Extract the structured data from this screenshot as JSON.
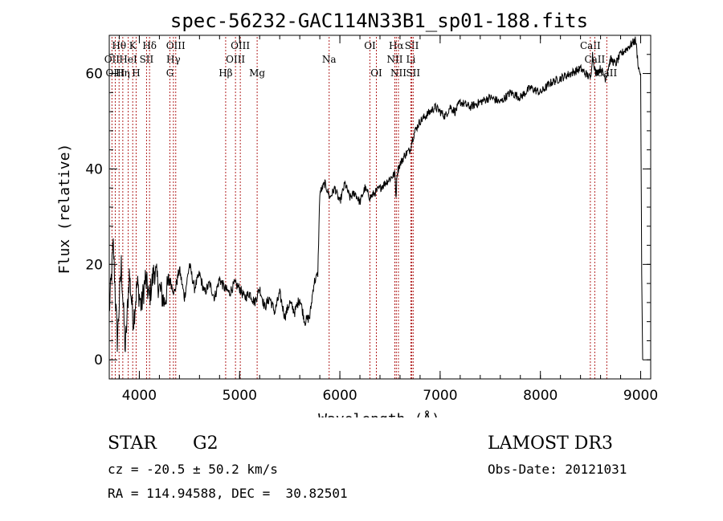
{
  "chart_data": {
    "type": "line",
    "title": "spec-56232-GAC114N33B1_sp01-188.fits",
    "xlabel": "Wavelength (Å)",
    "ylabel": "Flux (relative)",
    "xlim": [
      3700,
      9100
    ],
    "ylim": [
      -4,
      68
    ],
    "xticks": [
      4000,
      5000,
      6000,
      7000,
      8000,
      9000
    ],
    "yticks": [
      0,
      20,
      40,
      60
    ],
    "grid": false,
    "series": [
      {
        "name": "flux",
        "x": [
          3700,
          3740,
          3780,
          3820,
          3860,
          3900,
          3940,
          3980,
          4020,
          4060,
          4100,
          4150,
          4200,
          4250,
          4300,
          4350,
          4400,
          4450,
          4500,
          4550,
          4600,
          4650,
          4700,
          4750,
          4800,
          4850,
          4900,
          4950,
          5000,
          5050,
          5100,
          5150,
          5200,
          5250,
          5300,
          5350,
          5400,
          5450,
          5500,
          5550,
          5600,
          5650,
          5700,
          5740,
          5760,
          5780,
          5800,
          5850,
          5900,
          5950,
          6000,
          6050,
          6100,
          6150,
          6200,
          6250,
          6300,
          6350,
          6400,
          6450,
          6500,
          6550,
          6560,
          6570,
          6580,
          6600,
          6650,
          6700,
          6720,
          6750,
          6800,
          6850,
          6900,
          6950,
          7000,
          7050,
          7100,
          7150,
          7200,
          7300,
          7400,
          7500,
          7600,
          7700,
          7800,
          7900,
          8000,
          8100,
          8200,
          8300,
          8400,
          8450,
          8500,
          8520,
          8550,
          8600,
          8650,
          8700,
          8750,
          8800,
          8850,
          8900,
          8950,
          8980,
          9000,
          9010,
          9020
        ],
        "values": [
          10,
          24,
          4,
          20,
          2,
          18,
          8,
          16,
          11,
          17,
          13,
          19,
          15,
          12,
          17,
          14,
          19,
          13,
          20,
          15,
          18,
          14,
          16,
          13,
          17,
          15,
          14,
          16,
          15,
          13,
          14,
          12,
          15,
          11,
          13,
          10,
          14,
          9,
          12,
          10,
          13,
          8,
          9,
          16,
          17,
          18,
          35,
          37,
          34,
          36,
          33,
          37,
          34,
          35,
          33,
          36,
          34,
          35,
          36,
          37,
          38,
          39,
          34,
          39,
          40,
          41,
          43,
          44,
          46,
          48,
          50,
          51,
          52,
          53,
          52,
          51,
          53,
          52,
          54,
          53,
          54,
          55,
          54,
          56,
          55,
          57,
          56,
          58,
          59,
          60,
          61,
          60,
          59,
          64,
          60,
          61,
          59,
          63,
          62,
          64,
          65,
          66,
          67,
          61,
          60,
          18,
          0
        ]
      }
    ],
    "emission_lines": [
      {
        "name": "Hθ",
        "wave": 3798,
        "row": 1
      },
      {
        "name": "OII",
        "wave": 3727,
        "row": 2
      },
      {
        "name": "OIII",
        "wave": 3760,
        "row": 3
      },
      {
        "name": "K",
        "wave": 3934,
        "row": 1
      },
      {
        "name": "HeI",
        "wave": 3889,
        "row": 2
      },
      {
        "name": "Hη",
        "wave": 3835,
        "row": 3
      },
      {
        "name": "SII",
        "wave": 4072,
        "row": 2
      },
      {
        "name": "H",
        "wave": 3968,
        "row": 3
      },
      {
        "name": "Hδ",
        "wave": 4102,
        "row": 1
      },
      {
        "name": "OIII",
        "wave": 4363,
        "row": 1
      },
      {
        "name": "Hγ",
        "wave": 4340,
        "row": 2
      },
      {
        "name": "G",
        "wave": 4305,
        "row": 3
      },
      {
        "name": "Hβ",
        "wave": 4861,
        "row": 3
      },
      {
        "name": "OIII",
        "wave": 5007,
        "row": 1
      },
      {
        "name": "OIII",
        "wave": 4959,
        "row": 2
      },
      {
        "name": "Mg",
        "wave": 5175,
        "row": 3
      },
      {
        "name": "Na",
        "wave": 5893,
        "row": 2
      },
      {
        "name": "OI",
        "wave": 6300,
        "row": 1
      },
      {
        "name": "OI",
        "wave": 6364,
        "row": 3
      },
      {
        "name": "Hα",
        "wave": 6563,
        "row": 1
      },
      {
        "name": "NII",
        "wave": 6548,
        "row": 2
      },
      {
        "name": "NII",
        "wave": 6584,
        "row": 3
      },
      {
        "name": "SII",
        "wave": 6717,
        "row": 1
      },
      {
        "name": "Li",
        "wave": 6708,
        "row": 2
      },
      {
        "name": "SII",
        "wave": 6731,
        "row": 3
      },
      {
        "name": "CaII",
        "wave": 8498,
        "row": 1
      },
      {
        "name": "CaII",
        "wave": 8542,
        "row": 2
      },
      {
        "name": "CaII",
        "wave": 8662,
        "row": 3
      }
    ]
  },
  "info": {
    "object_type": "STAR",
    "subclass": "G2",
    "survey": "LAMOST DR3",
    "redshift": "cz = -20.5 ± 50.2 km/s",
    "obs_date": "Obs-Date: 20121031",
    "coords": "RA = 114.94588, DEC =  30.82501"
  },
  "colors": {
    "line": "#000000",
    "marker": "#b22222",
    "axis": "#000000"
  }
}
